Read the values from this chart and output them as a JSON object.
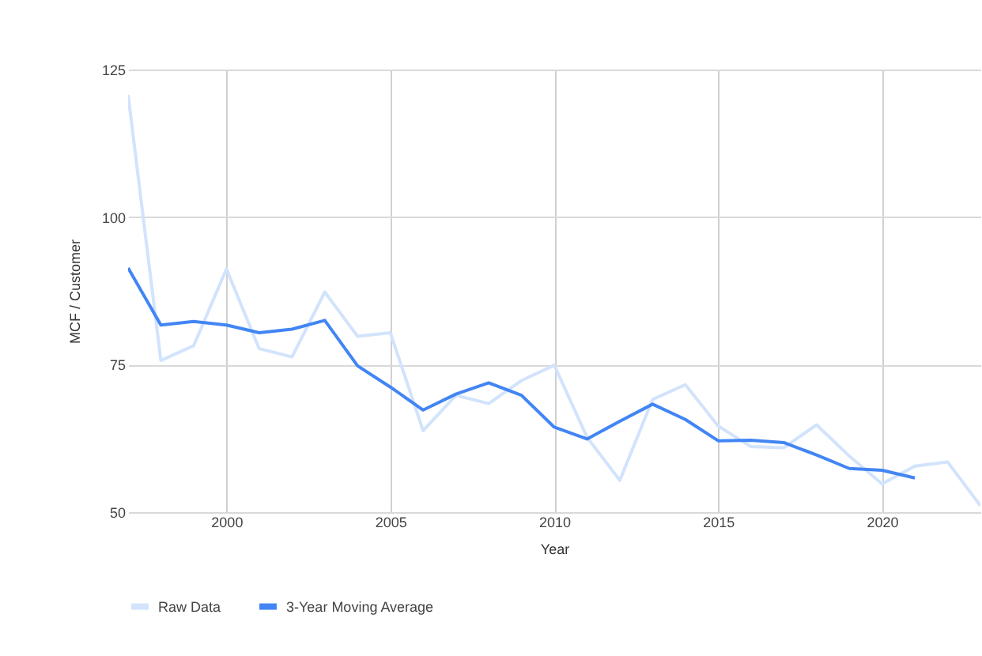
{
  "chart_data": {
    "type": "line",
    "xlabel": "Year",
    "ylabel": "MCF / Customer",
    "x": [
      1997,
      1998,
      1999,
      2000,
      2001,
      2002,
      2003,
      2004,
      2005,
      2006,
      2007,
      2008,
      2009,
      2010,
      2011,
      2012,
      2013,
      2014,
      2015,
      2016,
      2017,
      2018,
      2019,
      2020,
      2021,
      2022,
      2023
    ],
    "series": [
      {
        "name": "Raw Data",
        "color": "#d2e3fc",
        "values": [
          120.7,
          75.7,
          78.2,
          91.2,
          77.7,
          76.3,
          87.3,
          79.8,
          80.4,
          63.8,
          69.8,
          68.4,
          72.3,
          74.9,
          62.7,
          55.4,
          69.1,
          71.6,
          64.6,
          61.1,
          60.9,
          64.8,
          59.5,
          54.8,
          57.8,
          58.5,
          51.1
        ]
      },
      {
        "name": "3-Year Moving Average",
        "color": "#4285f4",
        "values": [
          91.4,
          81.7,
          82.3,
          81.7,
          80.4,
          81.0,
          82.5,
          74.8,
          71.2,
          67.3,
          70.0,
          71.9,
          69.8,
          64.4,
          62.4,
          65.4,
          68.3,
          65.7,
          62.1,
          62.2,
          61.8,
          59.7,
          57.4,
          57.1,
          55.8,
          null,
          null
        ]
      }
    ],
    "xlim": [
      1997,
      2023
    ],
    "xticks": [
      2000,
      2005,
      2010,
      2015,
      2020
    ],
    "ylim": [
      50,
      125
    ],
    "yticks": [
      50,
      75,
      100,
      125
    ],
    "grid": true,
    "legend": "bottom",
    "line_style": "solid"
  }
}
